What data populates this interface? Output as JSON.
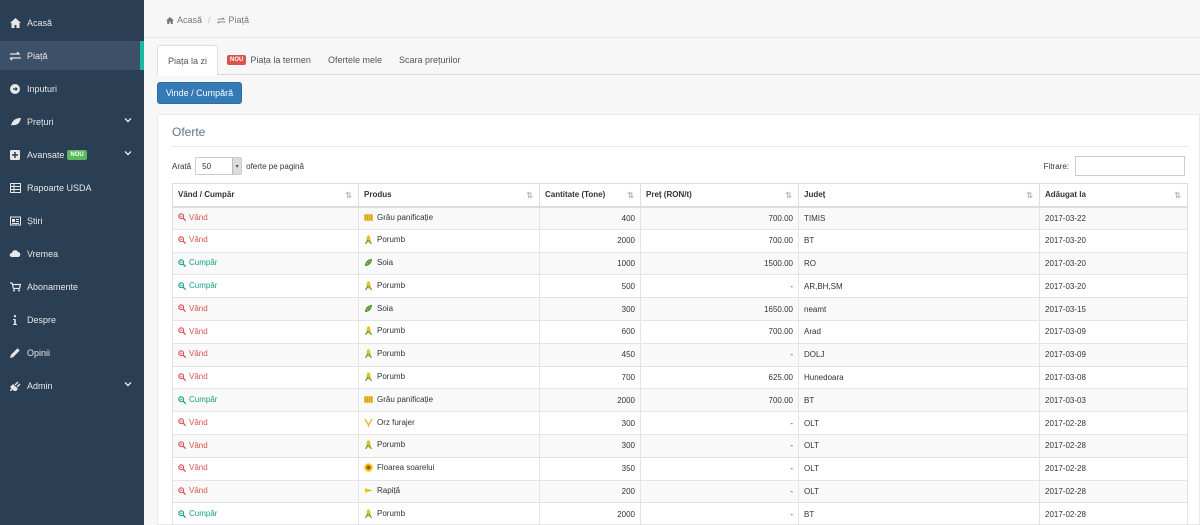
{
  "sidebar": {
    "items": [
      {
        "label": "Acasă",
        "icon": "home-icon"
      },
      {
        "label": "Piață",
        "icon": "exchange-icon"
      },
      {
        "label": "Inputuri",
        "icon": "arrow-circle-icon"
      },
      {
        "label": "Prețuri",
        "icon": "leaf-icon"
      },
      {
        "label": "Avansate",
        "icon": "plus-square-icon",
        "badge": "NOU"
      },
      {
        "label": "Rapoarte USDA",
        "icon": "table-icon"
      },
      {
        "label": "Știri",
        "icon": "newspaper-icon"
      },
      {
        "label": "Vremea",
        "icon": "cloud-icon"
      },
      {
        "label": "Abonamente",
        "icon": "cart-icon"
      },
      {
        "label": "Despre",
        "icon": "info-icon"
      },
      {
        "label": "Opinii",
        "icon": "pencil-icon"
      },
      {
        "label": "Admin",
        "icon": "plug-icon"
      }
    ]
  },
  "breadcrumb": {
    "home": "Acasă",
    "current": "Piață"
  },
  "tabs": {
    "t1": "Piața la zi",
    "t2_badge": "NOU",
    "t2": "Piața la termen",
    "t3": "Ofertele mele",
    "t4": "Scara prețurilor"
  },
  "actions": {
    "sell_buy": "Vinde / Cumpără"
  },
  "panel": {
    "title": "Oferte",
    "show_prefix": "Arată",
    "page_size": "50",
    "show_suffix": "oferte pe pagină",
    "filter_label": "Fitrare:"
  },
  "table": {
    "headers": [
      "Vând / Cumpăr",
      "Produs",
      "Cantitate (Tone)",
      "Preț (RON/t)",
      "Județ",
      "Adăugat la"
    ],
    "rows": [
      {
        "side": "Vând",
        "product": "Grâu panificație",
        "qty": "400",
        "price": "700.00",
        "county": "TIMIS",
        "date": "2017-03-22"
      },
      {
        "side": "Vând",
        "product": "Porumb",
        "qty": "2000",
        "price": "700.00",
        "county": "BT",
        "date": "2017-03-20"
      },
      {
        "side": "Cumpăr",
        "product": "Soia",
        "qty": "1000",
        "price": "1500.00",
        "county": "RO",
        "date": "2017-03-20"
      },
      {
        "side": "Cumpăr",
        "product": "Porumb",
        "qty": "500",
        "price": "-",
        "county": "AR,BH,SM",
        "date": "2017-03-20"
      },
      {
        "side": "Vând",
        "product": "Soia",
        "qty": "300",
        "price": "1650.00",
        "county": "neamt",
        "date": "2017-03-15"
      },
      {
        "side": "Vând",
        "product": "Porumb",
        "qty": "600",
        "price": "700.00",
        "county": "Arad",
        "date": "2017-03-09"
      },
      {
        "side": "Vând",
        "product": "Porumb",
        "qty": "450",
        "price": "-",
        "county": "DOLJ",
        "date": "2017-03-09"
      },
      {
        "side": "Vând",
        "product": "Porumb",
        "qty": "700",
        "price": "625.00",
        "county": "Hunedoara",
        "date": "2017-03-08"
      },
      {
        "side": "Cumpăr",
        "product": "Grâu panificație",
        "qty": "2000",
        "price": "700.00",
        "county": "BT",
        "date": "2017-03-03"
      },
      {
        "side": "Vând",
        "product": "Orz furajer",
        "qty": "300",
        "price": "-",
        "county": "OLT",
        "date": "2017-02-28"
      },
      {
        "side": "Vând",
        "product": "Porumb",
        "qty": "300",
        "price": "-",
        "county": "OLT",
        "date": "2017-02-28"
      },
      {
        "side": "Vând",
        "product": "Floarea soarelui",
        "qty": "350",
        "price": "-",
        "county": "OLT",
        "date": "2017-02-28"
      },
      {
        "side": "Vând",
        "product": "Rapiță",
        "qty": "200",
        "price": "-",
        "county": "OLT",
        "date": "2017-02-28"
      },
      {
        "side": "Cumpăr",
        "product": "Porumb",
        "qty": "2000",
        "price": "-",
        "county": "BT",
        "date": "2017-02-28"
      }
    ]
  }
}
